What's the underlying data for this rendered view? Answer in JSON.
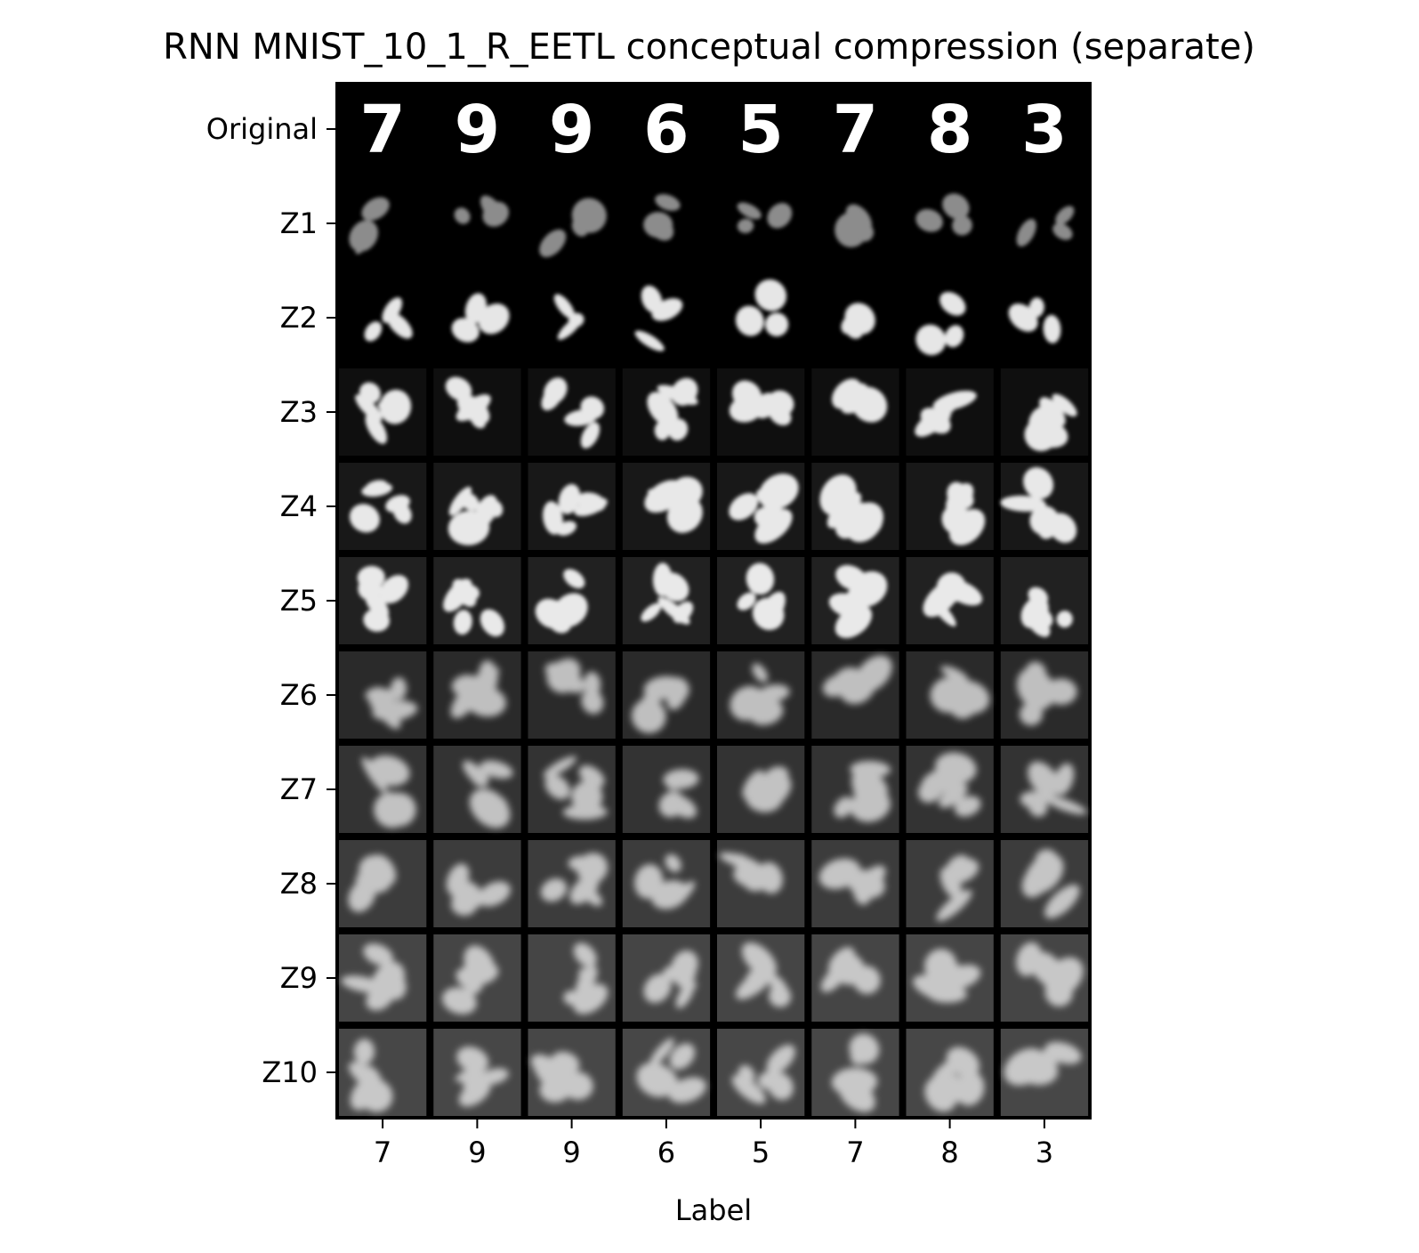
{
  "chart_data": {
    "type": "image-grid",
    "title": "RNN MNIST_10_1_R_EETL conceptual compression (separate)",
    "xlabel": "Label",
    "ylabel": "",
    "x_tick_labels": [
      "7",
      "9",
      "9",
      "6",
      "5",
      "7",
      "8",
      "3"
    ],
    "row_labels": [
      "Original",
      "Z1",
      "Z2",
      "Z3",
      "Z4",
      "Z5",
      "Z6",
      "Z7",
      "Z8",
      "Z9",
      "Z10"
    ],
    "original_digits": [
      "7",
      "9",
      "9",
      "6",
      "5",
      "7",
      "8",
      "3"
    ],
    "colormap": "gray",
    "background_color": "#000000"
  }
}
